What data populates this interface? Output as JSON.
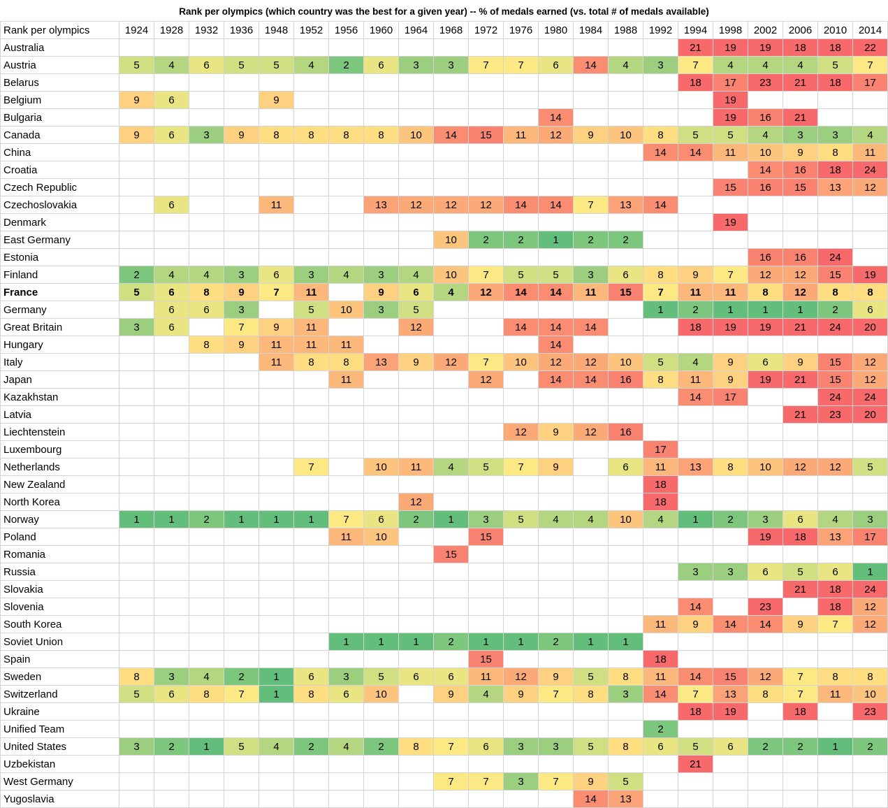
{
  "chart_data": {
    "type": "table",
    "title": "Rank per olympics  (which country was the best for a given year) -- % of medals earned (vs. total # of medals available)",
    "corner_label": "Rank per olympics",
    "years": [
      "1924",
      "1928",
      "1932",
      "1936",
      "1948",
      "1952",
      "1956",
      "1960",
      "1964",
      "1968",
      "1972",
      "1976",
      "1980",
      "1984",
      "1988",
      "1992",
      "1994",
      "1998",
      "2002",
      "2006",
      "2010",
      "2014"
    ],
    "bold_row": "France",
    "color_scale": {
      "1": "#63be7b",
      "2": "#7dc67d",
      "3": "#9bcf7f",
      "4": "#b4d680",
      "5": "#d0df81",
      "6": "#e8e582",
      "7": "#fde983",
      "8": "#fede81",
      "9": "#fdd17f",
      "10": "#fcc47d",
      "11": "#fcb77a",
      "12": "#fbaa77",
      "13": "#fba276",
      "14": "#f98c71",
      "15": "#f98370",
      "16": "#f98370",
      "17": "#f98370",
      "18": "#f8696b",
      "19": "#f8696b",
      "20": "#f8696b",
      "21": "#f8696b",
      "22": "#f8696b",
      "23": "#f8696b",
      "24": "#f8696b"
    },
    "rows": [
      {
        "country": "Australia",
        "ranks": [
          null,
          null,
          null,
          null,
          null,
          null,
          null,
          null,
          null,
          null,
          null,
          null,
          null,
          null,
          null,
          null,
          21,
          19,
          19,
          18,
          18,
          22
        ]
      },
      {
        "country": "Austria",
        "ranks": [
          5,
          4,
          6,
          5,
          5,
          4,
          2,
          6,
          3,
          3,
          7,
          7,
          6,
          14,
          4,
          3,
          7,
          4,
          4,
          4,
          5,
          7
        ]
      },
      {
        "country": "Belarus",
        "ranks": [
          null,
          null,
          null,
          null,
          null,
          null,
          null,
          null,
          null,
          null,
          null,
          null,
          null,
          null,
          null,
          null,
          18,
          17,
          23,
          21,
          18,
          17
        ]
      },
      {
        "country": "Belgium",
        "ranks": [
          9,
          6,
          null,
          null,
          9,
          null,
          null,
          null,
          null,
          null,
          null,
          null,
          null,
          null,
          null,
          null,
          null,
          19,
          null,
          null,
          null,
          null
        ]
      },
      {
        "country": "Bulgaria",
        "ranks": [
          null,
          null,
          null,
          null,
          null,
          null,
          null,
          null,
          null,
          null,
          null,
          null,
          14,
          null,
          null,
          null,
          null,
          19,
          16,
          21,
          null,
          null
        ]
      },
      {
        "country": "Canada",
        "ranks": [
          9,
          6,
          3,
          9,
          8,
          8,
          8,
          8,
          10,
          14,
          15,
          11,
          12,
          9,
          10,
          8,
          5,
          5,
          4,
          3,
          3,
          4
        ]
      },
      {
        "country": "China",
        "ranks": [
          null,
          null,
          null,
          null,
          null,
          null,
          null,
          null,
          null,
          null,
          null,
          null,
          null,
          null,
          null,
          14,
          14,
          11,
          10,
          9,
          8,
          11
        ]
      },
      {
        "country": "Croatia",
        "ranks": [
          null,
          null,
          null,
          null,
          null,
          null,
          null,
          null,
          null,
          null,
          null,
          null,
          null,
          null,
          null,
          null,
          null,
          null,
          14,
          16,
          18,
          24
        ]
      },
      {
        "country": "Czech Republic",
        "ranks": [
          null,
          null,
          null,
          null,
          null,
          null,
          null,
          null,
          null,
          null,
          null,
          null,
          null,
          null,
          null,
          null,
          null,
          15,
          16,
          15,
          13,
          12
        ]
      },
      {
        "country": "Czechoslovakia",
        "ranks": [
          null,
          6,
          null,
          null,
          11,
          null,
          null,
          13,
          12,
          12,
          12,
          14,
          14,
          7,
          13,
          14,
          null,
          null,
          null,
          null,
          null,
          null
        ]
      },
      {
        "country": "Denmark",
        "ranks": [
          null,
          null,
          null,
          null,
          null,
          null,
          null,
          null,
          null,
          null,
          null,
          null,
          null,
          null,
          null,
          null,
          null,
          19,
          null,
          null,
          null,
          null
        ]
      },
      {
        "country": "East Germany",
        "ranks": [
          null,
          null,
          null,
          null,
          null,
          null,
          null,
          null,
          null,
          10,
          2,
          2,
          1,
          2,
          2,
          null,
          null,
          null,
          null,
          null,
          null,
          null
        ]
      },
      {
        "country": "Estonia",
        "ranks": [
          null,
          null,
          null,
          null,
          null,
          null,
          null,
          null,
          null,
          null,
          null,
          null,
          null,
          null,
          null,
          null,
          null,
          null,
          16,
          16,
          24,
          null
        ]
      },
      {
        "country": "Finland",
        "ranks": [
          2,
          4,
          4,
          3,
          6,
          3,
          4,
          3,
          4,
          10,
          7,
          5,
          5,
          3,
          6,
          8,
          9,
          7,
          12,
          12,
          15,
          19
        ]
      },
      {
        "country": "France",
        "ranks": [
          5,
          6,
          8,
          9,
          7,
          11,
          null,
          9,
          6,
          4,
          12,
          14,
          14,
          11,
          15,
          7,
          11,
          11,
          8,
          12,
          8,
          8
        ]
      },
      {
        "country": "Germany",
        "ranks": [
          null,
          6,
          6,
          3,
          null,
          5,
          10,
          3,
          5,
          null,
          null,
          null,
          null,
          null,
          null,
          1,
          2,
          1,
          1,
          1,
          2,
          6
        ]
      },
      {
        "country": "Great Britain",
        "ranks": [
          3,
          6,
          null,
          7,
          9,
          11,
          null,
          null,
          12,
          null,
          null,
          14,
          14,
          14,
          null,
          null,
          18,
          19,
          19,
          21,
          24,
          20
        ]
      },
      {
        "country": "Hungary",
        "ranks": [
          null,
          null,
          8,
          9,
          11,
          11,
          11,
          null,
          null,
          null,
          null,
          null,
          14,
          null,
          null,
          null,
          null,
          null,
          null,
          null,
          null,
          null
        ]
      },
      {
        "country": "Italy",
        "ranks": [
          null,
          null,
          null,
          null,
          11,
          8,
          8,
          13,
          9,
          12,
          7,
          10,
          12,
          12,
          10,
          5,
          4,
          9,
          6,
          9,
          15,
          12
        ]
      },
      {
        "country": "Japan",
        "ranks": [
          null,
          null,
          null,
          null,
          null,
          null,
          11,
          null,
          null,
          null,
          12,
          null,
          14,
          14,
          16,
          8,
          11,
          9,
          19,
          21,
          15,
          12
        ]
      },
      {
        "country": "Kazakhstan",
        "ranks": [
          null,
          null,
          null,
          null,
          null,
          null,
          null,
          null,
          null,
          null,
          null,
          null,
          null,
          null,
          null,
          null,
          14,
          17,
          null,
          null,
          24,
          24
        ]
      },
      {
        "country": "Latvia",
        "ranks": [
          null,
          null,
          null,
          null,
          null,
          null,
          null,
          null,
          null,
          null,
          null,
          null,
          null,
          null,
          null,
          null,
          null,
          null,
          null,
          21,
          23,
          20
        ]
      },
      {
        "country": "Liechtenstein",
        "ranks": [
          null,
          null,
          null,
          null,
          null,
          null,
          null,
          null,
          null,
          null,
          null,
          12,
          9,
          12,
          16,
          null,
          null,
          null,
          null,
          null,
          null,
          null
        ]
      },
      {
        "country": "Luxembourg",
        "ranks": [
          null,
          null,
          null,
          null,
          null,
          null,
          null,
          null,
          null,
          null,
          null,
          null,
          null,
          null,
          null,
          17,
          null,
          null,
          null,
          null,
          null,
          null
        ]
      },
      {
        "country": "Netherlands",
        "ranks": [
          null,
          null,
          null,
          null,
          null,
          7,
          null,
          10,
          11,
          4,
          5,
          7,
          9,
          null,
          6,
          11,
          13,
          8,
          10,
          12,
          12,
          5
        ]
      },
      {
        "country": "New Zealand",
        "ranks": [
          null,
          null,
          null,
          null,
          null,
          null,
          null,
          null,
          null,
          null,
          null,
          null,
          null,
          null,
          null,
          18,
          null,
          null,
          null,
          null,
          null,
          null
        ]
      },
      {
        "country": "North Korea",
        "ranks": [
          null,
          null,
          null,
          null,
          null,
          null,
          null,
          null,
          12,
          null,
          null,
          null,
          null,
          null,
          null,
          18,
          null,
          null,
          null,
          null,
          null,
          null
        ]
      },
      {
        "country": "Norway",
        "ranks": [
          1,
          1,
          2,
          1,
          1,
          1,
          7,
          6,
          2,
          1,
          3,
          5,
          4,
          4,
          10,
          4,
          1,
          2,
          3,
          6,
          4,
          3
        ]
      },
      {
        "country": "Poland",
        "ranks": [
          null,
          null,
          null,
          null,
          null,
          null,
          11,
          10,
          null,
          null,
          15,
          null,
          null,
          null,
          null,
          null,
          null,
          null,
          19,
          18,
          13,
          17
        ]
      },
      {
        "country": "Romania",
        "ranks": [
          null,
          null,
          null,
          null,
          null,
          null,
          null,
          null,
          null,
          15,
          null,
          null,
          null,
          null,
          null,
          null,
          null,
          null,
          null,
          null,
          null,
          null
        ]
      },
      {
        "country": "Russia",
        "ranks": [
          null,
          null,
          null,
          null,
          null,
          null,
          null,
          null,
          null,
          null,
          null,
          null,
          null,
          null,
          null,
          null,
          3,
          3,
          6,
          5,
          6,
          1
        ]
      },
      {
        "country": "Slovakia",
        "ranks": [
          null,
          null,
          null,
          null,
          null,
          null,
          null,
          null,
          null,
          null,
          null,
          null,
          null,
          null,
          null,
          null,
          null,
          null,
          null,
          21,
          18,
          24
        ]
      },
      {
        "country": "Slovenia",
        "ranks": [
          null,
          null,
          null,
          null,
          null,
          null,
          null,
          null,
          null,
          null,
          null,
          null,
          null,
          null,
          null,
          null,
          14,
          null,
          23,
          null,
          18,
          12
        ]
      },
      {
        "country": "South Korea",
        "ranks": [
          null,
          null,
          null,
          null,
          null,
          null,
          null,
          null,
          null,
          null,
          null,
          null,
          null,
          null,
          null,
          11,
          9,
          14,
          14,
          9,
          7,
          12
        ]
      },
      {
        "country": "Soviet Union",
        "ranks": [
          null,
          null,
          null,
          null,
          null,
          null,
          1,
          1,
          1,
          2,
          1,
          1,
          2,
          1,
          1,
          null,
          null,
          null,
          null,
          null,
          null,
          null
        ]
      },
      {
        "country": "Spain",
        "ranks": [
          null,
          null,
          null,
          null,
          null,
          null,
          null,
          null,
          null,
          null,
          15,
          null,
          null,
          null,
          null,
          18,
          null,
          null,
          null,
          null,
          null,
          null
        ]
      },
      {
        "country": "Sweden",
        "ranks": [
          8,
          3,
          4,
          2,
          1,
          6,
          3,
          5,
          6,
          6,
          11,
          12,
          9,
          5,
          8,
          11,
          14,
          15,
          12,
          7,
          8,
          8
        ]
      },
      {
        "country": "Switzerland",
        "ranks": [
          5,
          6,
          8,
          7,
          1,
          8,
          6,
          10,
          null,
          9,
          4,
          9,
          7,
          8,
          3,
          14,
          7,
          13,
          8,
          7,
          11,
          10
        ]
      },
      {
        "country": "Ukraine",
        "ranks": [
          null,
          null,
          null,
          null,
          null,
          null,
          null,
          null,
          null,
          null,
          null,
          null,
          null,
          null,
          null,
          null,
          18,
          19,
          null,
          18,
          null,
          23
        ]
      },
      {
        "country": "Unified Team",
        "ranks": [
          null,
          null,
          null,
          null,
          null,
          null,
          null,
          null,
          null,
          null,
          null,
          null,
          null,
          null,
          null,
          2,
          null,
          null,
          null,
          null,
          null,
          null
        ]
      },
      {
        "country": "United States",
        "ranks": [
          3,
          2,
          1,
          5,
          4,
          2,
          4,
          2,
          8,
          7,
          6,
          3,
          3,
          5,
          8,
          6,
          5,
          6,
          2,
          2,
          1,
          2
        ]
      },
      {
        "country": "Uzbekistan",
        "ranks": [
          null,
          null,
          null,
          null,
          null,
          null,
          null,
          null,
          null,
          null,
          null,
          null,
          null,
          null,
          null,
          null,
          21,
          null,
          null,
          null,
          null,
          null
        ]
      },
      {
        "country": "West Germany",
        "ranks": [
          null,
          null,
          null,
          null,
          null,
          null,
          null,
          null,
          null,
          7,
          7,
          3,
          7,
          9,
          5,
          null,
          null,
          null,
          null,
          null,
          null,
          null
        ]
      },
      {
        "country": "Yugoslavia",
        "ranks": [
          null,
          null,
          null,
          null,
          null,
          null,
          null,
          null,
          null,
          null,
          null,
          null,
          null,
          14,
          13,
          null,
          null,
          null,
          null,
          null,
          null,
          null
        ]
      }
    ]
  }
}
